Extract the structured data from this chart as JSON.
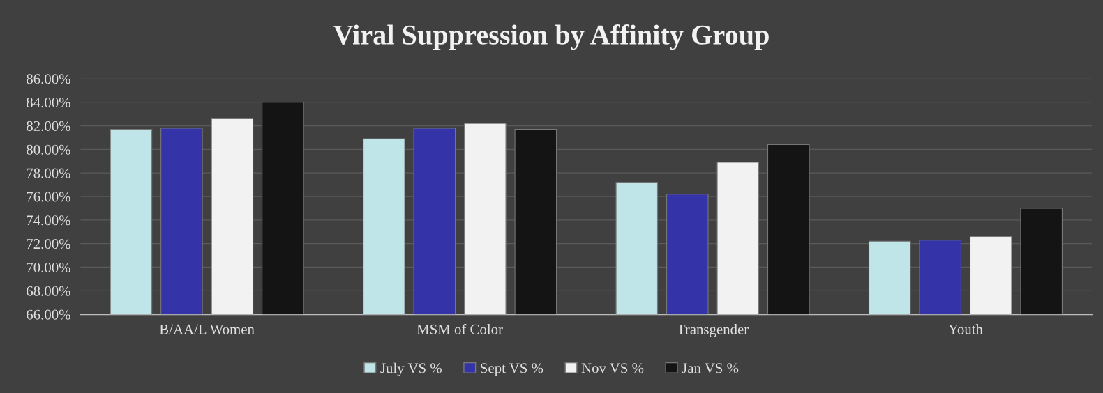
{
  "chart_data": {
    "type": "bar",
    "title": "Viral Suppression by Affinity Group",
    "categories": [
      "B/AA/L Women",
      "MSM of Color",
      "Transgender",
      "Youth"
    ],
    "series": [
      {
        "name": "July VS %",
        "color": "#bfe5e8",
        "values": [
          81.7,
          80.9,
          77.2,
          72.2
        ]
      },
      {
        "name": "Sept VS %",
        "color": "#3434a8",
        "values": [
          81.8,
          81.8,
          76.2,
          72.3
        ]
      },
      {
        "name": "Nov VS %",
        "color": "#f2f2f2",
        "values": [
          82.6,
          82.2,
          78.9,
          72.6
        ]
      },
      {
        "name": "Jan VS %",
        "color": "#141414",
        "values": [
          84.0,
          81.7,
          80.4,
          75.0
        ]
      }
    ],
    "ylim": [
      66,
      86
    ],
    "yticks": [
      {
        "value": 66,
        "label": "66.00%"
      },
      {
        "value": 68,
        "label": "68.00%"
      },
      {
        "value": 70,
        "label": "70.00%"
      },
      {
        "value": 72,
        "label": "72.00%"
      },
      {
        "value": 74,
        "label": "74.00%"
      },
      {
        "value": 76,
        "label": "76.00%"
      },
      {
        "value": 78,
        "label": "78.00%"
      },
      {
        "value": 80,
        "label": "80.00%"
      },
      {
        "value": 82,
        "label": "82.00%"
      },
      {
        "value": 84,
        "label": "84.00%"
      },
      {
        "value": 86,
        "label": "86.00%"
      }
    ],
    "grid": "y",
    "legend": "bottom"
  }
}
